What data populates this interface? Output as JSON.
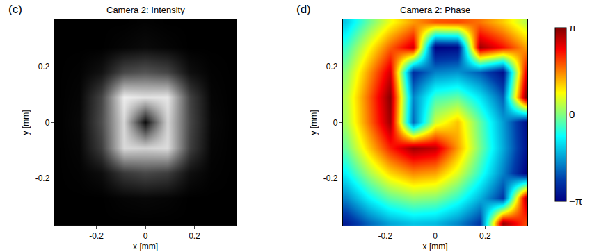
{
  "chart_data": [
    {
      "type": "heatmap",
      "annotations": [
        "(c)"
      ],
      "title": "Camera 2: Intensity",
      "x_label": "x [mm]",
      "y_label": "y [mm]",
      "color": "gray",
      "x": [
        -0.36,
        -0.27,
        -0.18,
        -0.09,
        0,
        0.09,
        0.18,
        0.27,
        0.36
      ],
      "y": [
        -0.36,
        -0.27,
        -0.18,
        -0.09,
        0,
        0.09,
        0.18,
        0.27,
        0.36
      ],
      "z": [
        [
          0,
          0,
          0,
          0,
          0,
          0,
          0,
          0,
          0
        ],
        [
          0,
          0,
          0,
          0.02,
          0.03,
          0.02,
          0,
          0,
          0
        ],
        [
          0,
          0.01,
          0.05,
          0.22,
          0.28,
          0.24,
          0.06,
          0.01,
          0
        ],
        [
          0,
          0.02,
          0.24,
          0.85,
          0.82,
          0.86,
          0.25,
          0.02,
          0
        ],
        [
          0,
          0.03,
          0.3,
          0.84,
          0.05,
          0.83,
          0.28,
          0.03,
          0
        ],
        [
          0,
          0.02,
          0.27,
          0.93,
          0.88,
          0.9,
          0.26,
          0.02,
          0
        ],
        [
          0,
          0.01,
          0.07,
          0.28,
          0.33,
          0.27,
          0.06,
          0.01,
          0
        ],
        [
          0,
          0,
          0,
          0.02,
          0.04,
          0.02,
          0,
          0,
          0
        ],
        [
          0,
          0,
          0,
          0,
          0.01,
          0,
          0,
          0,
          0
        ]
      ],
      "zlim": [
        0,
        1
      ],
      "xlim": [
        -0.37,
        0.37
      ],
      "ylim": [
        -0.37,
        0.37
      ],
      "xticks": [
        -0.2,
        0,
        0.2
      ],
      "yticks": [
        -0.2,
        0,
        0.2
      ]
    },
    {
      "type": "heatmap",
      "annotations": [
        "(d)"
      ],
      "title": "Camera 2: Phase",
      "x_label": "x [mm]",
      "y_label": "y [mm]",
      "color": "jet",
      "x": [
        -0.36,
        -0.27,
        -0.18,
        -0.09,
        0,
        0.09,
        0.18,
        0.27,
        0.36
      ],
      "y": [
        -0.36,
        -0.27,
        -0.18,
        -0.09,
        0,
        0.09,
        0.18,
        0.27,
        0.36
      ],
      "z": [
        [
          -2.78,
          -2.04,
          -1.5,
          -1.25,
          -1.33,
          -1.74,
          -2.43,
          2.96,
          1.93
        ],
        [
          -1.75,
          -0.87,
          -0.21,
          0.12,
          0.02,
          -0.52,
          -1.39,
          -2.44,
          2.68
        ],
        [
          -0.86,
          0.19,
          1.04,
          1.52,
          1.37,
          0.59,
          -0.53,
          -1.78,
          -3.07
        ],
        [
          -0.17,
          1.05,
          2.16,
          2.95,
          2.72,
          1.38,
          -0.06,
          -1.45,
          -2.82
        ],
        [
          0.24,
          1.59,
          2.94,
          -1.99,
          0.5,
          1.15,
          -0.2,
          -1.55,
          -2.9
        ],
        [
          0.32,
          1.69,
          3.09,
          -1.77,
          -0.42,
          -0.19,
          -0.98,
          -2.09,
          2.97
        ],
        [
          0.07,
          1.36,
          2.61,
          -2.55,
          -1.77,
          -1.63,
          -2.1,
          -2.96,
          2.28
        ],
        [
          -0.47,
          0.7,
          1.76,
          2.62,
          -3.12,
          -3.02,
          2.93,
          2.27,
          1.39
        ],
        [
          -1.21,
          -0.18,
          0.71,
          1.4,
          1.81,
          1.89,
          1.64,
          1.11,
          0.36
        ]
      ],
      "zlim": [
        -3.14159,
        3.14159
      ],
      "colorbar_ticks": [
        {
          "value": 3.14159,
          "label": "π"
        },
        0,
        {
          "value": -3.14159,
          "label": "−π"
        }
      ],
      "xlim": [
        -0.37,
        0.37
      ],
      "ylim": [
        -0.37,
        0.37
      ],
      "xticks": [
        -0.2,
        0,
        0.2
      ],
      "yticks": [
        -0.2,
        0,
        0.2
      ]
    }
  ]
}
